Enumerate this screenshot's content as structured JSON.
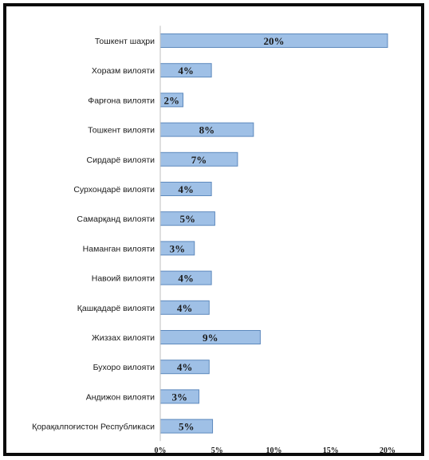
{
  "chart_data": {
    "type": "bar",
    "orientation": "horizontal",
    "categories": [
      "Тошкент шаҳри",
      "Хоразм вилояти",
      "Фарғона вилояти",
      "Тошкент вилояти",
      "Сирдарё вилояти",
      "Сурхондарё вилояти",
      "Самарқанд вилояти",
      "Наманган вилояти",
      "Навоий вилояти",
      "Қашқадарё вилояти",
      "Жиззах вилояти",
      "Бухоро вилояти",
      "Андижон вилояти",
      "Қорақалпоғистон Республикаси"
    ],
    "values": [
      20,
      4.5,
      2,
      8.2,
      6.8,
      4.5,
      4.8,
      3,
      4.5,
      4.3,
      8.8,
      4.3,
      3.4,
      4.6
    ],
    "data_labels": [
      "20%",
      "4%",
      "2%",
      "8%",
      "7%",
      "4%",
      "5%",
      "3%",
      "4%",
      "4%",
      "9%",
      "4%",
      "3%",
      "5%"
    ],
    "xlim": [
      0,
      20
    ],
    "x_ticks": [
      0,
      5,
      10,
      15,
      20
    ],
    "x_tick_labels": [
      "0%",
      "5%",
      "10%",
      "15%",
      "20%"
    ],
    "grid": false,
    "legend": "none",
    "colors": {
      "bar_fill": "#9fc0e6",
      "bar_stroke": "#5d89bd",
      "frame": "#0b0b0b"
    }
  }
}
